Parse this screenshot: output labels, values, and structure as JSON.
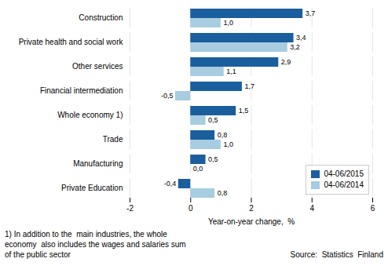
{
  "chart_data": {
    "type": "bar",
    "orientation": "horizontal",
    "categories": [
      "Construction",
      "Private health and social work",
      "Other services",
      "Financial intermediation",
      "Whole economy 1)",
      "Trade",
      "Manufacturing",
      "Private Education"
    ],
    "series": [
      {
        "name": "04-06/2015",
        "color": "#1a5e9e",
        "values": [
          3.7,
          3.4,
          2.9,
          1.7,
          1.5,
          0.8,
          0.5,
          -0.4
        ],
        "value_labels": [
          "3,7",
          "3,4",
          "2,9",
          "1,7",
          "1,5",
          "0,8",
          "0,5",
          "-0,4"
        ]
      },
      {
        "name": "04-06/2014",
        "color": "#a8cce0",
        "values": [
          1.0,
          3.2,
          1.1,
          -0.5,
          0.5,
          1.0,
          0.0,
          0.8
        ],
        "value_labels": [
          "1,0",
          "3,2",
          "1,1",
          "-0,5",
          "0,5",
          "1,0",
          "0,0",
          "0,8"
        ]
      }
    ],
    "xlabel": "Year-on-year change,  %",
    "xlim": [
      -2,
      6
    ],
    "xticks": [
      -2,
      0,
      2,
      4,
      6
    ],
    "grid": true,
    "legend": "lower right",
    "data_labels": true,
    "annotations": [
      "1) In addition to the  main industries, the whole",
      "economy  also includes the wages and salaries sum",
      "of the public sector",
      "Source:  Statistics  Finland"
    ]
  }
}
